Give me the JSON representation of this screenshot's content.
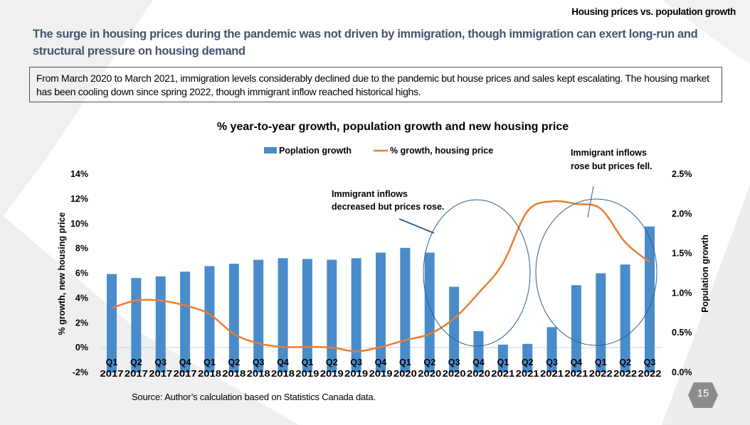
{
  "header": {
    "section_title": "Housing prices vs. population growth",
    "headline": "The surge in housing prices during the pandemic was not driven by immigration, though immigration can exert long-run and structural pressure on housing demand",
    "summary": "From March 2020 to March 2021, immigration levels considerably declined due to the pandemic but house prices and sales kept escalating. The housing market has been cooling down since spring 2022, though immigrant inflow reached historical highs."
  },
  "footer": {
    "source": "Source: Author’s calculation based on Statistics Canada data.",
    "page_number": "15"
  },
  "colors": {
    "bar": "#4a8ccb",
    "line": "#ed7d31",
    "headline": "#44546a",
    "annotation_ellipse": "#2f5f8a"
  },
  "chart_data": {
    "type": "bar+line",
    "title": "% year-to-year growth, population growth and new housing price",
    "categories": [
      [
        "Q1",
        "2017"
      ],
      [
        "Q2",
        "2017"
      ],
      [
        "Q3",
        "2017"
      ],
      [
        "Q4",
        "2017"
      ],
      [
        "Q1",
        "2018"
      ],
      [
        "Q2",
        "2018"
      ],
      [
        "Q3",
        "2018"
      ],
      [
        "Q4",
        "2018"
      ],
      [
        "Q1",
        "2019"
      ],
      [
        "Q2",
        "2019"
      ],
      [
        "Q3",
        "2019"
      ],
      [
        "Q4",
        "2019"
      ],
      [
        "Q1",
        "2020"
      ],
      [
        "Q2",
        "2020"
      ],
      [
        "Q3",
        "2020"
      ],
      [
        "Q4",
        "2020"
      ],
      [
        "Q1",
        "2021"
      ],
      [
        "Q2",
        "2021"
      ],
      [
        "Q3",
        "2021"
      ],
      [
        "Q4",
        "2021"
      ],
      [
        "Q1",
        "2022"
      ],
      [
        "Q2",
        "2022"
      ],
      [
        "Q3",
        "2022"
      ]
    ],
    "series": [
      {
        "name": "Poplation growth",
        "type": "bar",
        "axis": "right",
        "values": [
          1.24,
          1.19,
          1.21,
          1.27,
          1.34,
          1.37,
          1.42,
          1.44,
          1.43,
          1.42,
          1.44,
          1.51,
          1.57,
          1.51,
          1.08,
          0.52,
          0.35,
          0.36,
          0.57,
          1.1,
          1.25,
          1.36,
          1.84
        ]
      },
      {
        "name": "% growth, housing price",
        "type": "line",
        "axis": "left",
        "values": [
          3.2,
          3.8,
          3.8,
          3.4,
          2.7,
          1.1,
          0.35,
          0.05,
          0.05,
          0.0,
          -0.3,
          0.05,
          0.6,
          1.1,
          2.35,
          4.4,
          6.8,
          11.0,
          11.8,
          11.6,
          11.2,
          8.5,
          6.9
        ]
      }
    ],
    "y_left": {
      "label": "% growth, new housing price",
      "range": [
        -2,
        14
      ],
      "ticks": [
        "-2%",
        "0%",
        "2%",
        "4%",
        "6%",
        "8%",
        "10%",
        "12%",
        "14%"
      ],
      "tick_values": [
        -2,
        0,
        2,
        4,
        6,
        8,
        10,
        12,
        14
      ]
    },
    "y_right": {
      "label": "Population growth",
      "range": [
        0,
        2.5
      ],
      "ticks": [
        "0.0%",
        "0.5%",
        "1.0%",
        "1.5%",
        "2.0%",
        "2.5%"
      ],
      "tick_values": [
        0,
        0.5,
        1,
        1.5,
        2,
        2.5
      ]
    },
    "legend": {
      "placement": "top",
      "entries": [
        "Poplation growth",
        "% growth, housing price"
      ]
    },
    "annotations": [
      {
        "text_line1": "Immigrant inflows",
        "text_line2": "decreased but prices rose.",
        "categories_circled": [
          "Q2 2020",
          "Q1 2021"
        ]
      },
      {
        "text_line1": "Immigrant inflows",
        "text_line2": "rose but prices fell.",
        "categories_circled": [
          "Q3 2021",
          "Q3 2022"
        ]
      }
    ],
    "grid": false
  }
}
